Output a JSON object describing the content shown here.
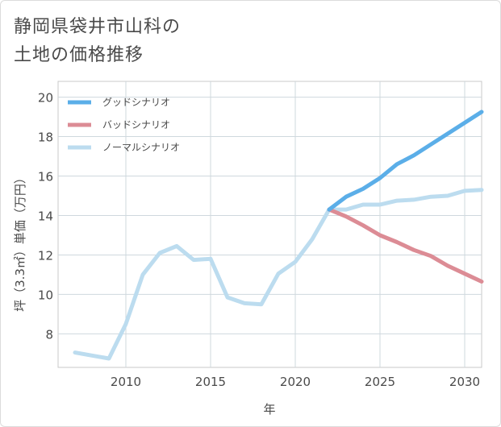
{
  "title_line1": "静岡県袋井市山科の",
  "title_line2": "土地の価格推移",
  "chart_data": {
    "type": "line",
    "xlabel": "年",
    "ylabel": "坪（3.3㎡）単価（万円）",
    "xlim": [
      2006,
      2031
    ],
    "ylim": [
      6.3,
      20.8
    ],
    "xticks": [
      2010,
      2015,
      2020,
      2025,
      2030
    ],
    "yticks": [
      8,
      10,
      12,
      14,
      16,
      18,
      20
    ],
    "grid": true,
    "legend_position": "top-left",
    "series": [
      {
        "name": "グッドシナリオ",
        "color": "#5baee8",
        "x": [
          2022,
          2023,
          2024,
          2025,
          2026,
          2027,
          2028,
          2029,
          2030,
          2031
        ],
        "values": [
          14.3,
          14.95,
          15.35,
          15.9,
          16.6,
          17.05,
          17.6,
          18.15,
          18.7,
          19.25
        ]
      },
      {
        "name": "バッドシナリオ",
        "color": "#dc8c95",
        "x": [
          2022,
          2023,
          2024,
          2025,
          2026,
          2027,
          2028,
          2029,
          2030,
          2031
        ],
        "values": [
          14.3,
          13.95,
          13.5,
          13.0,
          12.65,
          12.25,
          11.95,
          11.45,
          11.05,
          10.65
        ]
      },
      {
        "name": "ノーマルシナリオ",
        "color": "#bcdcef",
        "x": [
          2007,
          2008,
          2009,
          2010,
          2011,
          2012,
          2013,
          2014,
          2015,
          2016,
          2017,
          2018,
          2019,
          2020,
          2021,
          2022,
          2023,
          2024,
          2025,
          2026,
          2027,
          2028,
          2029,
          2030,
          2031
        ],
        "values": [
          7.05,
          6.9,
          6.75,
          8.5,
          11.0,
          12.1,
          12.45,
          11.75,
          11.8,
          9.85,
          9.55,
          9.5,
          11.05,
          11.65,
          12.8,
          14.3,
          14.3,
          14.55,
          14.55,
          14.75,
          14.8,
          14.95,
          15.0,
          15.25,
          15.3
        ]
      }
    ]
  }
}
